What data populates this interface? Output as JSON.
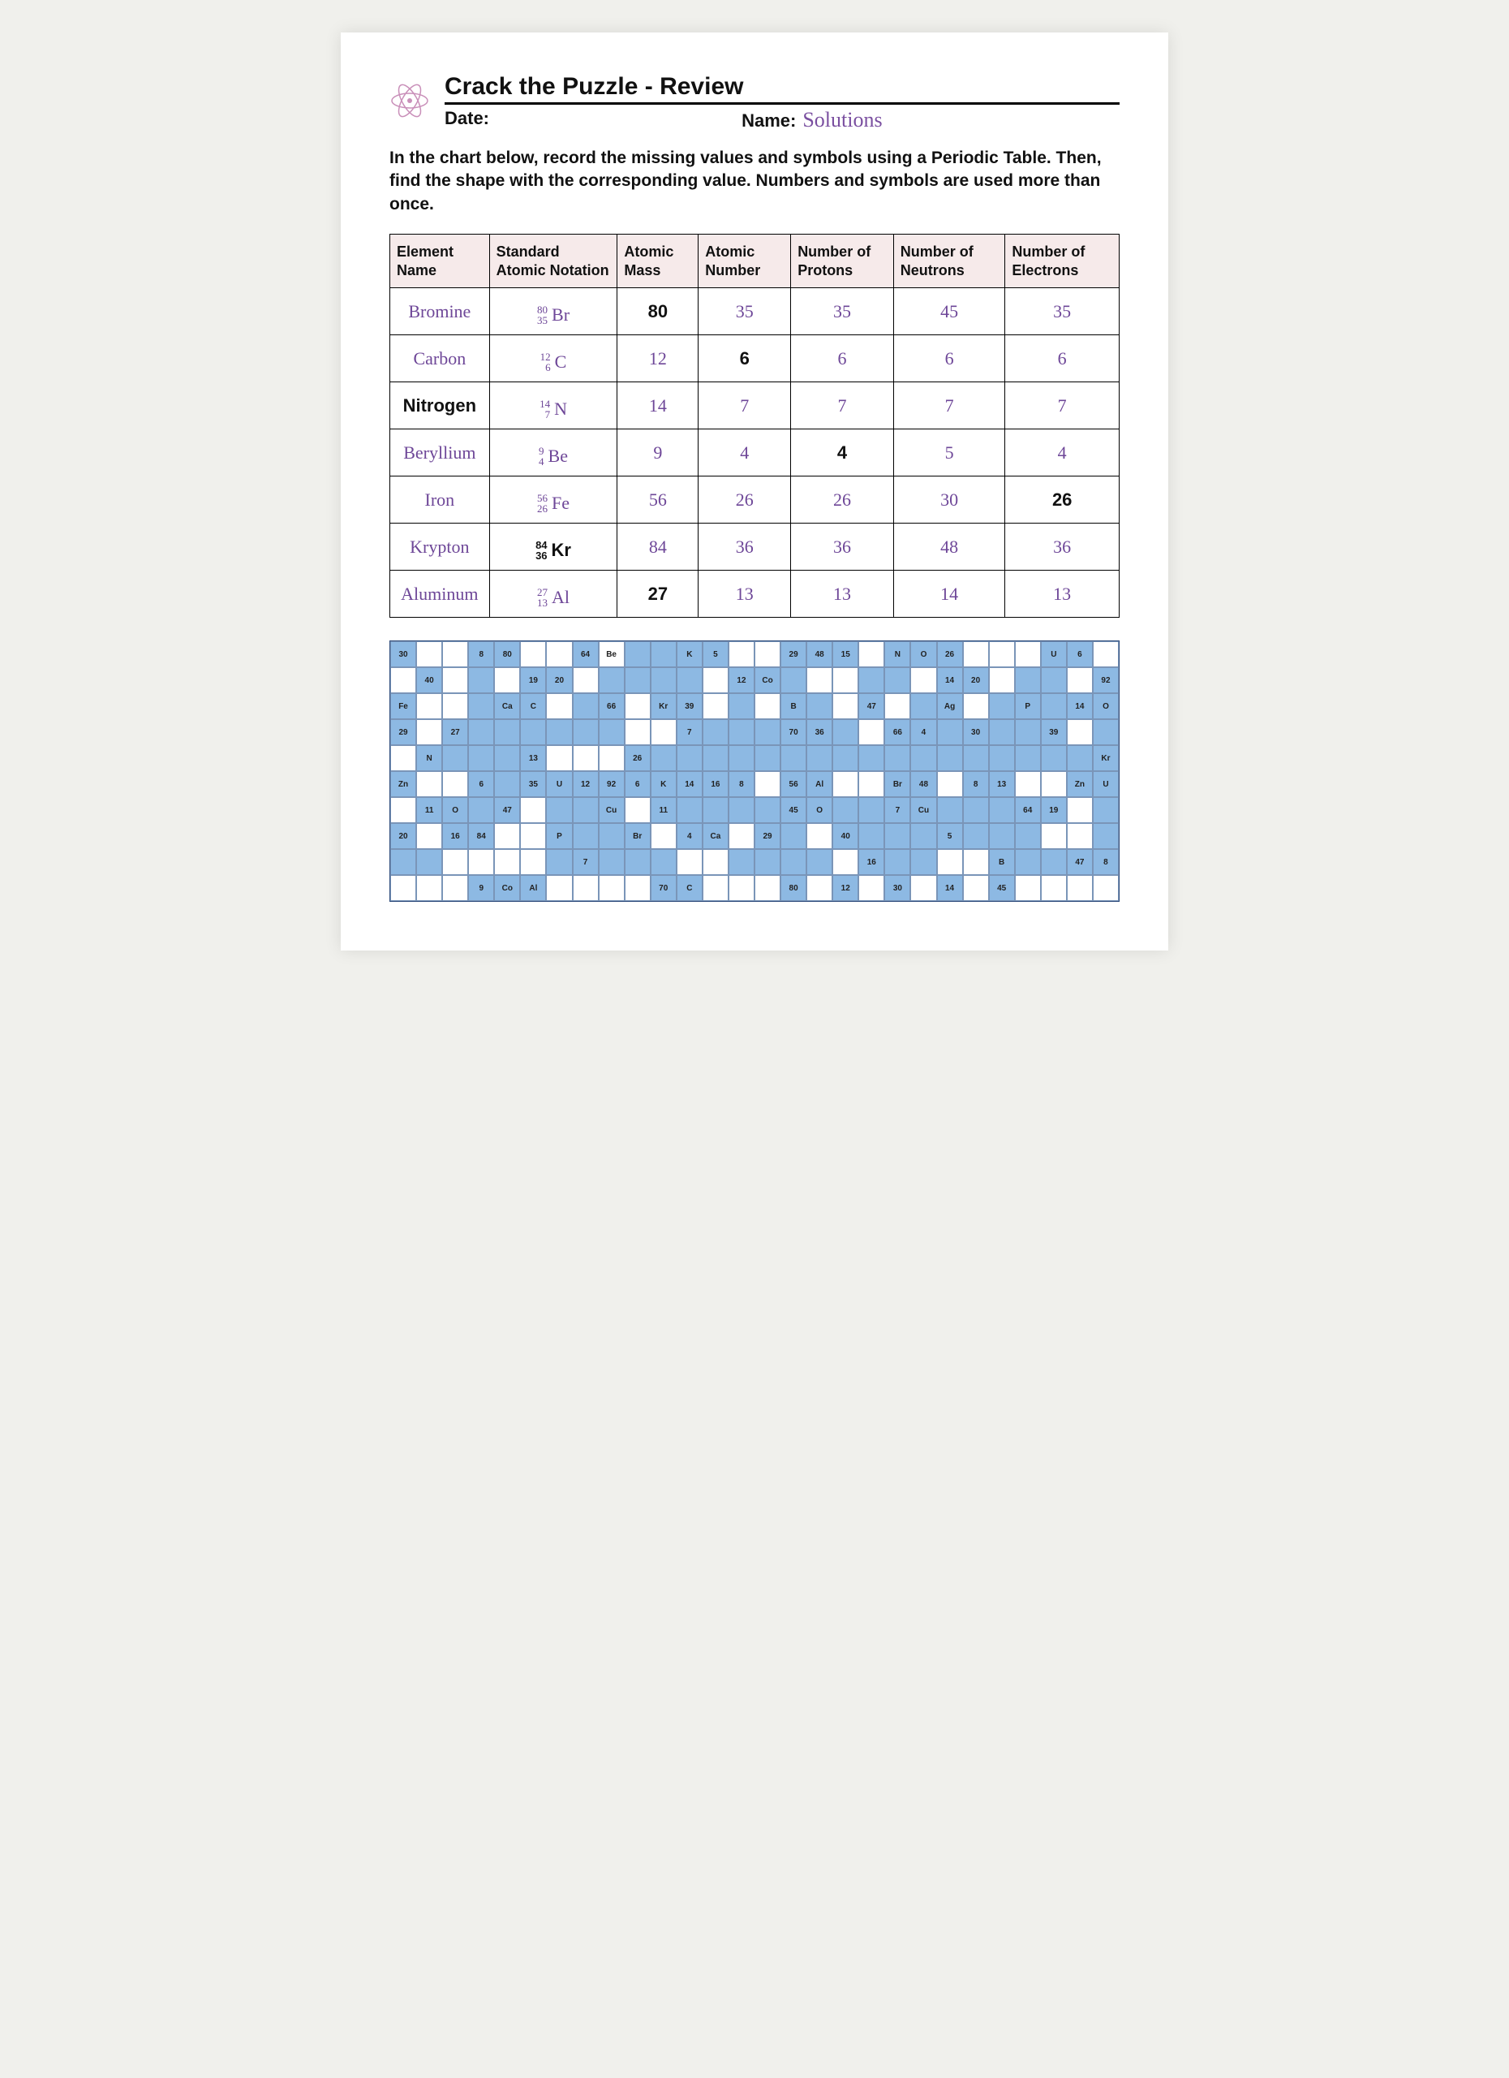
{
  "header": {
    "title": "Crack the Puzzle - Review",
    "date_label": "Date:",
    "name_label": "Name:",
    "name_value": "Solutions"
  },
  "instructions": "In the chart below, record the missing values and symbols using a Periodic Table. Then, find the shape with the corresponding value. Numbers and symbols are used more than once.",
  "table": {
    "headers": [
      "Element Name",
      "Standard Atomic Notation",
      "Atomic Mass",
      "Atomic Number",
      "Number of Protons",
      "Number of Neutrons",
      "Number of Electrons"
    ],
    "rows": [
      {
        "name": {
          "v": "Bromine",
          "hand": true
        },
        "not_top": "80",
        "not_bot": "35",
        "not_sym": "Br",
        "not_hand": true,
        "mass": {
          "v": "80",
          "hand": false
        },
        "num": {
          "v": "35",
          "hand": true
        },
        "p": {
          "v": "35",
          "hand": true
        },
        "n": {
          "v": "45",
          "hand": true
        },
        "e": {
          "v": "35",
          "hand": true
        }
      },
      {
        "name": {
          "v": "Carbon",
          "hand": true
        },
        "not_top": "12",
        "not_bot": "6",
        "not_sym": "C",
        "not_hand": true,
        "mass": {
          "v": "12",
          "hand": true
        },
        "num": {
          "v": "6",
          "hand": false
        },
        "p": {
          "v": "6",
          "hand": true
        },
        "n": {
          "v": "6",
          "hand": true
        },
        "e": {
          "v": "6",
          "hand": true
        }
      },
      {
        "name": {
          "v": "Nitrogen",
          "hand": false
        },
        "not_top": "14",
        "not_bot": "7",
        "not_sym": "N",
        "not_hand": true,
        "mass": {
          "v": "14",
          "hand": true
        },
        "num": {
          "v": "7",
          "hand": true
        },
        "p": {
          "v": "7",
          "hand": true
        },
        "n": {
          "v": "7",
          "hand": true
        },
        "e": {
          "v": "7",
          "hand": true
        }
      },
      {
        "name": {
          "v": "Beryllium",
          "hand": true
        },
        "not_top": "9",
        "not_bot": "4",
        "not_sym": "Be",
        "not_hand": true,
        "mass": {
          "v": "9",
          "hand": true
        },
        "num": {
          "v": "4",
          "hand": true
        },
        "p": {
          "v": "4",
          "hand": false
        },
        "n": {
          "v": "5",
          "hand": true
        },
        "e": {
          "v": "4",
          "hand": true
        }
      },
      {
        "name": {
          "v": "Iron",
          "hand": true
        },
        "not_top": "56",
        "not_bot": "26",
        "not_sym": "Fe",
        "not_hand": true,
        "mass": {
          "v": "56",
          "hand": true
        },
        "num": {
          "v": "26",
          "hand": true
        },
        "p": {
          "v": "26",
          "hand": true
        },
        "n": {
          "v": "30",
          "hand": true
        },
        "e": {
          "v": "26",
          "hand": false
        }
      },
      {
        "name": {
          "v": "Krypton",
          "hand": true
        },
        "not_top": "84",
        "not_bot": "36",
        "not_sym": "Kr",
        "not_hand": false,
        "mass": {
          "v": "84",
          "hand": true
        },
        "num": {
          "v": "36",
          "hand": true
        },
        "p": {
          "v": "36",
          "hand": true
        },
        "n": {
          "v": "48",
          "hand": true
        },
        "e": {
          "v": "36",
          "hand": true
        }
      },
      {
        "name": {
          "v": "Aluminum",
          "hand": true
        },
        "not_top": "27",
        "not_bot": "13",
        "not_sym": "Al",
        "not_hand": true,
        "mass": {
          "v": "27",
          "hand": false
        },
        "num": {
          "v": "13",
          "hand": true
        },
        "p": {
          "v": "13",
          "hand": true
        },
        "n": {
          "v": "14",
          "hand": true
        },
        "e": {
          "v": "13",
          "hand": true
        }
      }
    ]
  },
  "colors": {
    "header_bg": "#f6eaea",
    "handwriting": "#7a4fa0",
    "puzzle_blue": "#8db9e3",
    "puzzle_border": "#7a95b8"
  },
  "puzzle": {
    "cols": 28,
    "rows": 10,
    "cells": [
      [
        "b30",
        "w",
        "w",
        "b8",
        "b80",
        "w",
        "w",
        "b64",
        "wBe",
        "b",
        "b",
        "bK",
        "b5",
        "w",
        "w",
        "b29",
        "b48",
        "b15",
        "w",
        "bN",
        "bO",
        "b26",
        "w",
        "w",
        "w",
        "bU",
        "b6",
        "w"
      ],
      [
        "w",
        "b40",
        "w",
        "b",
        "w",
        "b19",
        "b20",
        "w",
        "b",
        "b",
        "b",
        "b",
        "w",
        "b12",
        "bCo",
        "b",
        "w",
        "w",
        "b",
        "b",
        "w",
        "b14",
        "b20",
        "w",
        "b",
        "b",
        "w",
        "b92"
      ],
      [
        "bFe",
        "w",
        "w",
        "b",
        "bCa",
        "bC",
        "w",
        "b",
        "b66",
        "w",
        "bKr",
        "b39",
        "w",
        "b",
        "w",
        "bB",
        "b",
        "w",
        "b47",
        "w",
        "b",
        "bAg",
        "w",
        "b",
        "bP",
        "b",
        "b14",
        "bO"
      ],
      [
        "b29",
        "w",
        "b27",
        "b",
        "b",
        "b",
        "b",
        "b",
        "b",
        "w",
        "w",
        "b7",
        "b",
        "b",
        "b",
        "b70",
        "b36",
        "b",
        "w",
        "b66",
        "b4",
        "b",
        "b30",
        "b",
        "b",
        "b39",
        "w",
        "b"
      ],
      [
        "w",
        "bN",
        "b",
        "b",
        "b",
        "b13",
        "w",
        "w",
        "w",
        "b26",
        "b",
        "b",
        "b",
        "b",
        "b",
        "b",
        "b",
        "b",
        "b",
        "b",
        "b",
        "b",
        "b",
        "b",
        "b",
        "b",
        "b",
        "bKr"
      ],
      [
        "bZn",
        "w",
        "w",
        "b6",
        "b",
        "b35",
        "bU",
        "b12",
        "b92",
        "b6",
        "bK",
        "b14",
        "b16",
        "b8",
        "w",
        "b56",
        "bAl",
        "w",
        "w",
        "bBr",
        "b48",
        "w",
        "b8",
        "b13",
        "w",
        "w",
        "bZn",
        "bU"
      ],
      [
        "w",
        "b11",
        "bO",
        "b",
        "b47",
        "w",
        "b",
        "b",
        "bCu",
        "w",
        "b11",
        "b",
        "b",
        "b",
        "b",
        "b45",
        "bO",
        "b",
        "b",
        "b7",
        "bCu",
        "b",
        "b",
        "b",
        "b64",
        "b19",
        "w",
        "b"
      ],
      [
        "b20",
        "w",
        "b16",
        "b84",
        "w",
        "w",
        "bP",
        "b",
        "b",
        "bBr",
        "w",
        "b4",
        "bCa",
        "w",
        "b29",
        "b",
        "w",
        "b40",
        "b",
        "b",
        "b",
        "b5",
        "b",
        "b",
        "b",
        "w",
        "w",
        "b"
      ],
      [
        "b",
        "b",
        "w",
        "w",
        "w",
        "w",
        "b",
        "b7",
        "b",
        "b",
        "b",
        "w",
        "w",
        "b",
        "b",
        "b",
        "b",
        "w",
        "b16",
        "b",
        "b",
        "w",
        "w",
        "bB",
        "b",
        "b",
        "b47",
        "b8"
      ],
      [
        "w",
        "w",
        "w",
        "b9",
        "bCo",
        "bAl",
        "w",
        "w",
        "w",
        "w",
        "b70",
        "bC",
        "w",
        "w",
        "w",
        "b80",
        "w",
        "b12",
        "w",
        "b30",
        "w",
        "b14",
        "w",
        "b45",
        "w",
        "w",
        "w",
        "w"
      ]
    ]
  }
}
